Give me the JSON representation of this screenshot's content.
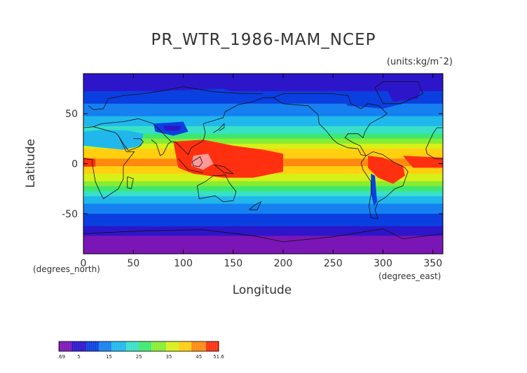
{
  "figure": {
    "title": "PR_WTR_1986-MAM_NCEP",
    "units": "(units:kg/m¯2)",
    "y_axis_label": "Latitude",
    "x_axis_label": "Longitude",
    "y_unit_label": "(degrees_north)",
    "x_unit_label": "(degrees_east)"
  },
  "chart_data": {
    "type": "heatmap",
    "title": "PR_WTR_1986-MAM_NCEP",
    "xlabel": "Longitude",
    "ylabel": "Latitude",
    "xlim": [
      0,
      360
    ],
    "ylim": [
      -90,
      90
    ],
    "x_ticks": [
      "0",
      "50",
      "100",
      "150",
      "200",
      "250",
      "300",
      "350"
    ],
    "x_tick_values": [
      0,
      50,
      100,
      150,
      200,
      250,
      300,
      350
    ],
    "y_ticks": [
      "50",
      "0",
      "-50"
    ],
    "y_tick_values": [
      50,
      0,
      -50
    ],
    "colorbar": {
      "min": -1.69,
      "max": 51.6,
      "tick_labels": [
        "-1.69",
        "5",
        "15",
        "25",
        "35",
        "45",
        "51.6"
      ],
      "tick_values": [
        -1.69,
        5,
        15,
        25,
        35,
        45,
        51.6
      ]
    },
    "latitude_band_values": [
      {
        "lat": 90,
        "value": 3
      },
      {
        "lat": 75,
        "value": 6
      },
      {
        "lat": 60,
        "value": 12
      },
      {
        "lat": 45,
        "value": 17
      },
      {
        "lat": 30,
        "value": 25
      },
      {
        "lat": 15,
        "value": 38
      },
      {
        "lat": 0,
        "value": 45
      },
      {
        "lat": -15,
        "value": 35
      },
      {
        "lat": -30,
        "value": 22
      },
      {
        "lat": -45,
        "value": 14
      },
      {
        "lat": -60,
        "value": 8
      },
      {
        "lat": -75,
        "value": 3
      },
      {
        "lat": -90,
        "value": 1
      }
    ]
  },
  "colors": {
    "palette": [
      "#7b16b6",
      "#2d16c9",
      "#0a3fe0",
      "#1680f0",
      "#20b8ec",
      "#38e0c8",
      "#3ee870",
      "#88ec32",
      "#d6f018",
      "#ffcf10",
      "#ff8a10",
      "#ff3010",
      "#ff9898"
    ]
  }
}
